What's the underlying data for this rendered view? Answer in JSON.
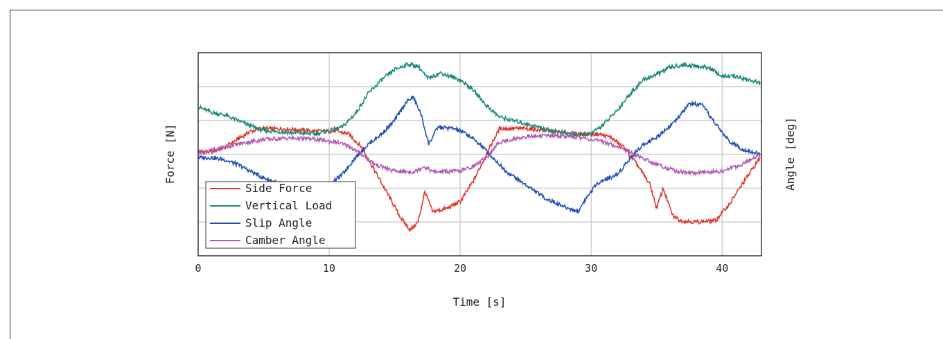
{
  "chart_data": {
    "type": "line",
    "title": "",
    "xlabel": "Time [s]",
    "ylabel_left": "Force [N]",
    "ylabel_right": "Angle [deg]",
    "xlim": [
      0,
      43
    ],
    "xticks": [
      0,
      10,
      20,
      30,
      40
    ],
    "x_tick_labels": [
      "0",
      "10",
      "20",
      "30",
      "40"
    ],
    "grid": true,
    "legend_position": "bottom-left",
    "series": [
      {
        "name": "Side Force",
        "color": "#e0352b",
        "x": [
          0,
          1,
          2,
          3,
          4,
          5,
          7,
          9,
          10.5,
          11.5,
          12.5,
          13.5,
          14.5,
          15.5,
          16.2,
          16.8,
          17.3,
          17.9,
          19,
          20,
          21,
          22,
          23,
          25,
          27,
          29,
          30.5,
          31.5,
          32.5,
          33.5,
          34.5,
          35,
          35.5,
          36.2,
          36.8,
          38,
          39.5,
          40.5,
          41.5,
          42.9
        ],
        "y": [
          0.05,
          0.03,
          0.1,
          0.22,
          0.34,
          0.38,
          0.37,
          0.34,
          0.34,
          0.3,
          0.1,
          -0.25,
          -0.6,
          -0.95,
          -1.12,
          -1.0,
          -0.55,
          -0.85,
          -0.8,
          -0.7,
          -0.4,
          0.0,
          0.38,
          0.38,
          0.34,
          0.3,
          0.3,
          0.25,
          0.1,
          -0.15,
          -0.45,
          -0.8,
          -0.5,
          -0.9,
          -0.98,
          -1.0,
          -0.98,
          -0.75,
          -0.45,
          -0.05
        ]
      },
      {
        "name": "Vertical Load",
        "color": "#1a8a76",
        "x": [
          0,
          1,
          2,
          3,
          4,
          5,
          7,
          9,
          11,
          12,
          13,
          14,
          15,
          16,
          16.8,
          17.5,
          18.5,
          20,
          21,
          22,
          23,
          25,
          27,
          29,
          30,
          31,
          32,
          33,
          34,
          35,
          36,
          37,
          38,
          39,
          40,
          41,
          42,
          42.9
        ],
        "y": [
          0.7,
          0.62,
          0.58,
          0.5,
          0.42,
          0.35,
          0.32,
          0.3,
          0.4,
          0.6,
          0.9,
          1.1,
          1.25,
          1.33,
          1.3,
          1.12,
          1.2,
          1.1,
          0.95,
          0.72,
          0.55,
          0.45,
          0.35,
          0.28,
          0.3,
          0.45,
          0.65,
          0.9,
          1.1,
          1.18,
          1.28,
          1.32,
          1.3,
          1.28,
          1.15,
          1.15,
          1.1,
          1.05
        ]
      },
      {
        "name": "Slip Angle",
        "color": "#1f4fb4",
        "x": [
          0,
          1,
          2,
          3,
          4,
          5,
          6,
          8,
          10,
          11,
          12,
          13,
          14,
          15,
          15.8,
          16.4,
          17,
          17.6,
          18.3,
          19.5,
          20.5,
          21.5,
          22.5,
          23.5,
          25,
          26.5,
          28,
          29,
          29.5,
          30.5,
          32,
          33,
          34,
          35,
          36.5,
          37.5,
          38.5,
          39.5,
          40.5,
          41.5,
          42.9
        ],
        "y": [
          -0.05,
          -0.05,
          -0.08,
          -0.15,
          -0.25,
          -0.35,
          -0.42,
          -0.48,
          -0.45,
          -0.3,
          -0.05,
          0.15,
          0.3,
          0.5,
          0.75,
          0.85,
          0.6,
          0.15,
          0.4,
          0.38,
          0.3,
          0.15,
          -0.05,
          -0.25,
          -0.45,
          -0.65,
          -0.78,
          -0.85,
          -0.68,
          -0.42,
          -0.3,
          -0.05,
          0.15,
          0.25,
          0.5,
          0.75,
          0.72,
          0.45,
          0.2,
          0.08,
          0.0
        ]
      },
      {
        "name": "Camber Angle",
        "color": "#b05ab8",
        "x": [
          0,
          1,
          2,
          3,
          5,
          7,
          9,
          10.5,
          11.5,
          12.5,
          13.5,
          15,
          16.5,
          17.2,
          18,
          20,
          21,
          22,
          23,
          25,
          27,
          29,
          30.5,
          31.5,
          32.5,
          33.5,
          35,
          36.5,
          38,
          40,
          41.5,
          42.9
        ],
        "y": [
          0.03,
          0.05,
          0.1,
          0.15,
          0.22,
          0.24,
          0.22,
          0.18,
          0.12,
          0.0,
          -0.15,
          -0.25,
          -0.26,
          -0.18,
          -0.26,
          -0.25,
          -0.18,
          -0.05,
          0.18,
          0.26,
          0.28,
          0.25,
          0.2,
          0.15,
          0.08,
          -0.02,
          -0.15,
          -0.25,
          -0.28,
          -0.25,
          -0.15,
          0.0
        ]
      }
    ]
  }
}
